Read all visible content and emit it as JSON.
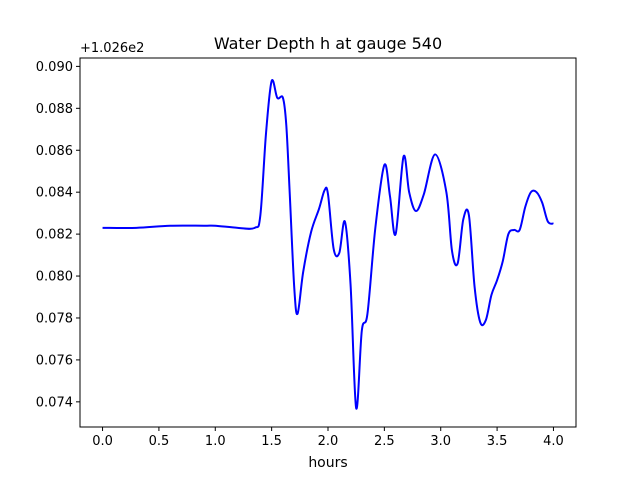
{
  "chart_data": {
    "type": "line",
    "title": "Water Depth h at gauge 540",
    "xlabel": "hours",
    "ylabel": "",
    "offset_label": "+1.026e2",
    "xlim": [
      -0.2,
      4.2
    ],
    "ylim": [
      0.0728,
      0.0904
    ],
    "xticks": [
      0.0,
      0.5,
      1.0,
      1.5,
      2.0,
      2.5,
      3.0,
      3.5,
      4.0
    ],
    "xtick_labels": [
      "0.0",
      "0.5",
      "1.0",
      "1.5",
      "2.0",
      "2.5",
      "3.0",
      "3.5",
      "4.0"
    ],
    "yticks": [
      0.074,
      0.076,
      0.078,
      0.08,
      0.082,
      0.084,
      0.086,
      0.088,
      0.09
    ],
    "ytick_labels": [
      "0.074",
      "0.076",
      "0.078",
      "0.080",
      "0.082",
      "0.084",
      "0.086",
      "0.088",
      "0.090"
    ],
    "grid": false,
    "series": [
      {
        "color": "#0000ff",
        "x": [
          0.0,
          0.3,
          0.6,
          0.9,
          1.0,
          1.2,
          1.35,
          1.4,
          1.45,
          1.5,
          1.55,
          1.6,
          1.63,
          1.66,
          1.7,
          1.73,
          1.78,
          1.85,
          1.92,
          1.97,
          2.0,
          2.05,
          2.1,
          2.15,
          2.2,
          2.25,
          2.3,
          2.35,
          2.42,
          2.5,
          2.55,
          2.6,
          2.67,
          2.72,
          2.78,
          2.85,
          2.95,
          3.05,
          3.1,
          3.15,
          3.2,
          3.25,
          3.3,
          3.35,
          3.4,
          3.45,
          3.5,
          3.55,
          3.6,
          3.65,
          3.7,
          3.75,
          3.8,
          3.85,
          3.9,
          3.95,
          4.0
        ],
        "y": [
          0.0823,
          0.0823,
          0.0824,
          0.0824,
          0.0824,
          0.0823,
          0.0823,
          0.0829,
          0.0868,
          0.0893,
          0.0885,
          0.0885,
          0.0872,
          0.084,
          0.0795,
          0.0782,
          0.0802,
          0.0821,
          0.0832,
          0.0841,
          0.0839,
          0.0813,
          0.0811,
          0.0826,
          0.0796,
          0.0737,
          0.0774,
          0.0782,
          0.0823,
          0.0853,
          0.0838,
          0.082,
          0.0857,
          0.084,
          0.0831,
          0.0839,
          0.0858,
          0.084,
          0.0812,
          0.0806,
          0.0827,
          0.0829,
          0.0795,
          0.0778,
          0.0779,
          0.0791,
          0.0798,
          0.0807,
          0.082,
          0.0822,
          0.0822,
          0.0833,
          0.084,
          0.084,
          0.0835,
          0.0826,
          0.0825
        ]
      }
    ]
  }
}
